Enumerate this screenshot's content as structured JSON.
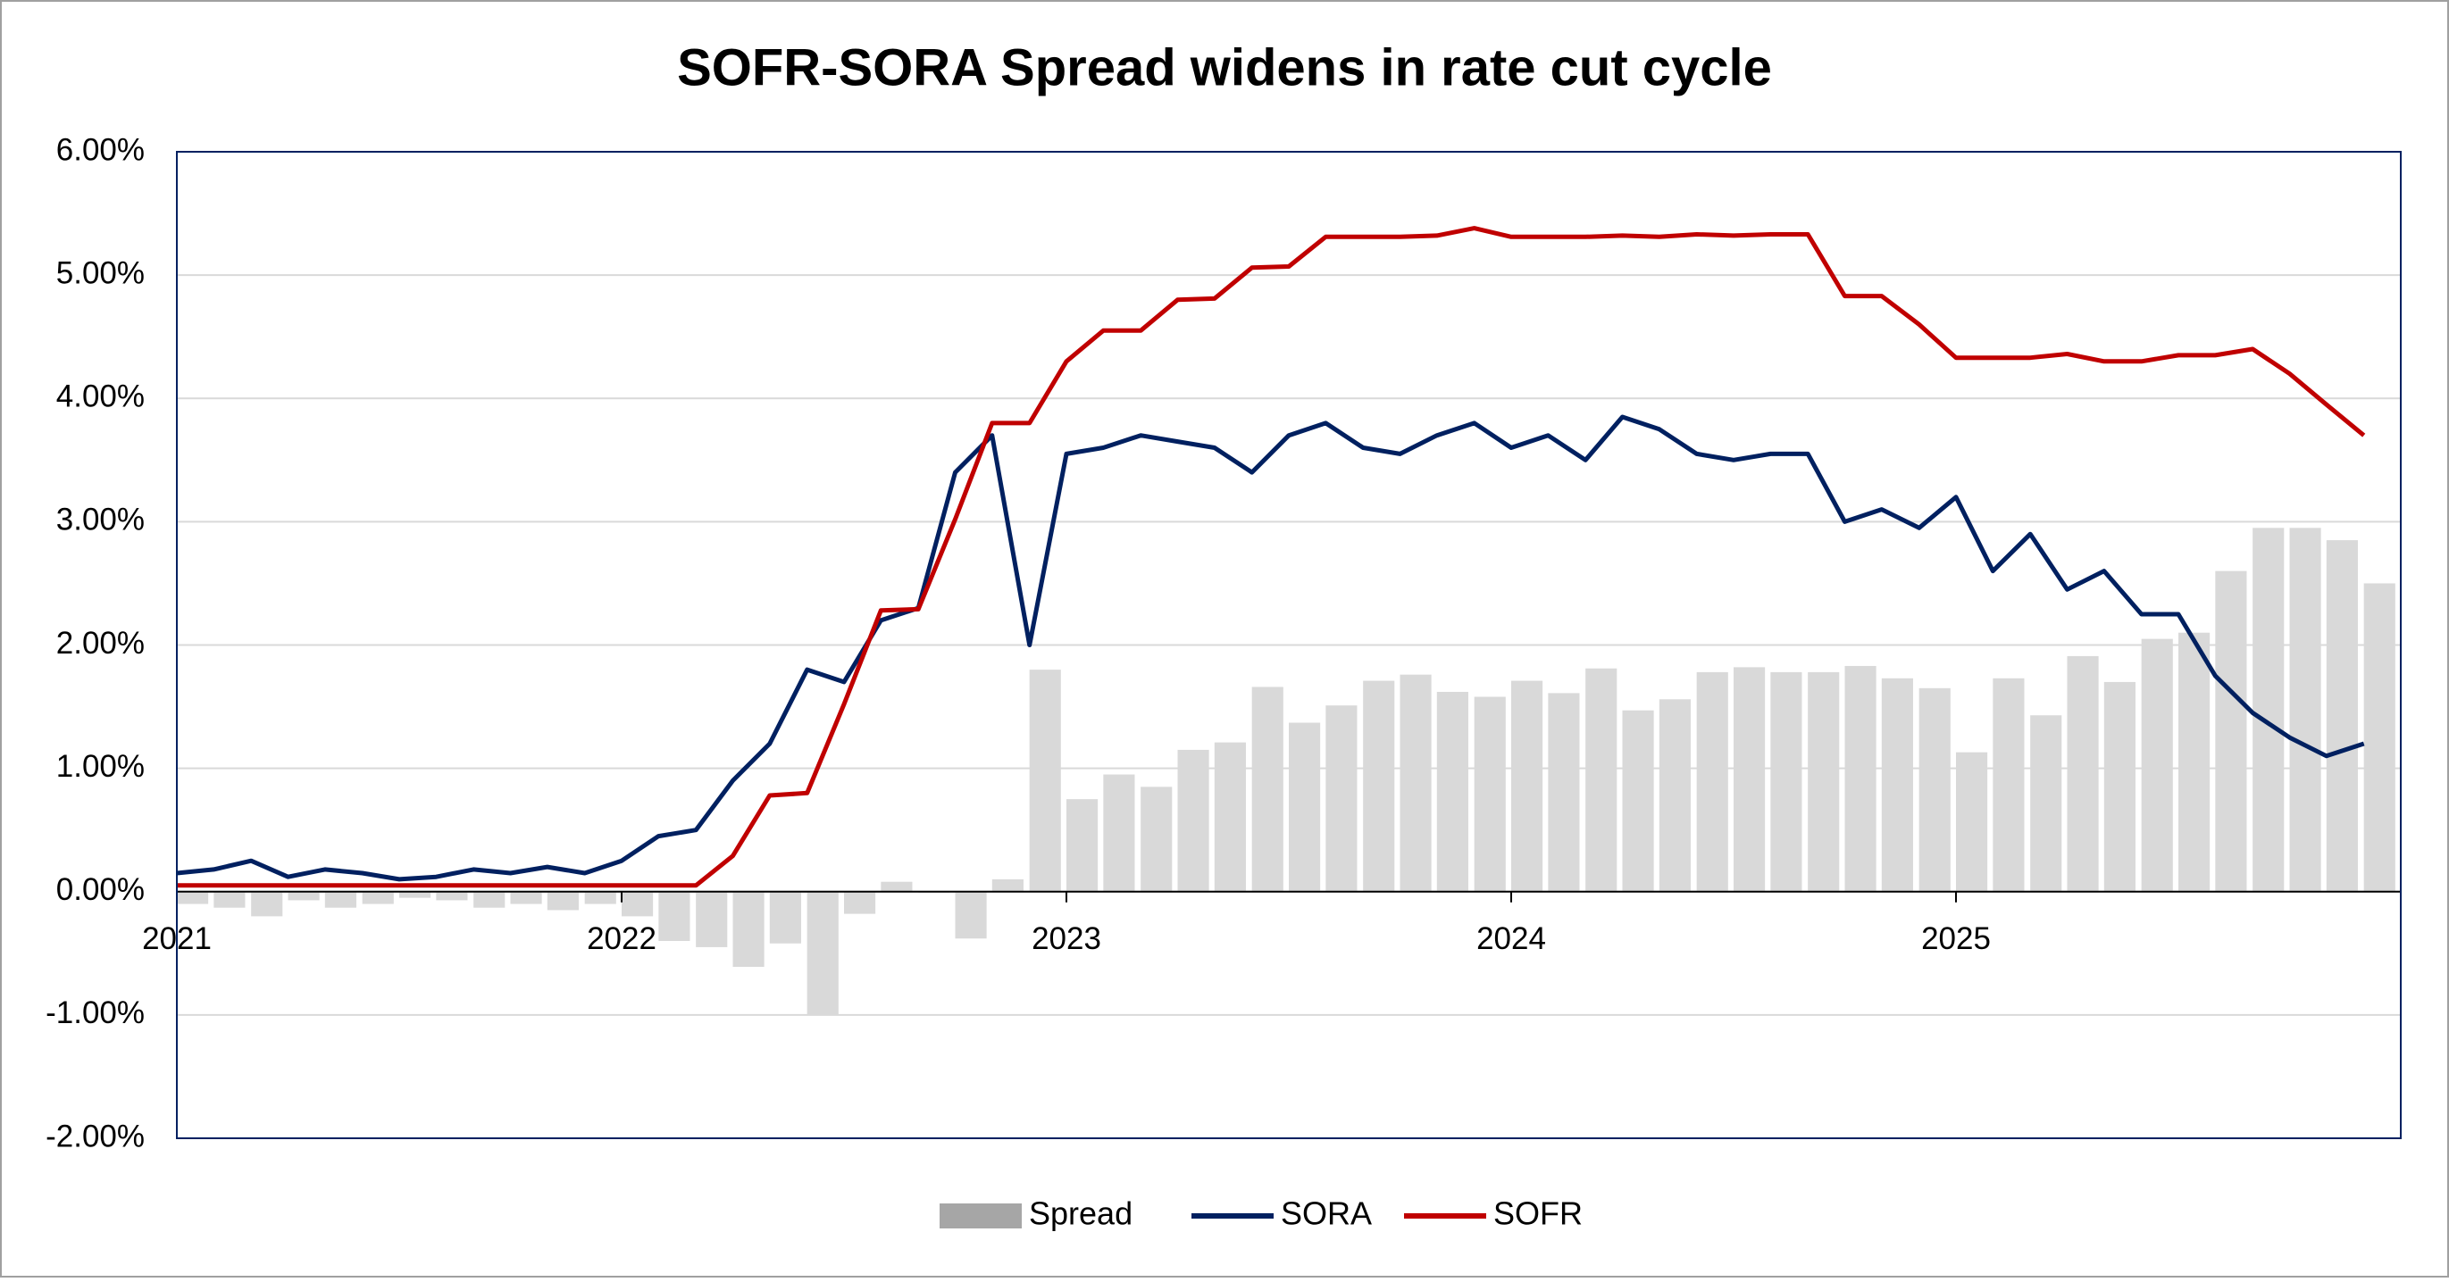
{
  "chart_data": {
    "type": "line",
    "title": "SOFR-SORA Spread widens in rate cut cycle",
    "x": [
      2021.0,
      2021.083,
      2021.167,
      2021.25,
      2021.333,
      2021.417,
      2021.5,
      2021.583,
      2021.667,
      2021.75,
      2021.833,
      2021.917,
      2022.0,
      2022.083,
      2022.167,
      2022.25,
      2022.333,
      2022.417,
      2022.5,
      2022.583,
      2022.667,
      2022.75,
      2022.833,
      2022.917,
      2023.0,
      2023.083,
      2023.167,
      2023.25,
      2023.333,
      2023.417,
      2023.5,
      2023.583,
      2023.667,
      2023.75,
      2023.833,
      2023.917,
      2024.0,
      2024.083,
      2024.167,
      2024.25,
      2024.333,
      2024.417,
      2024.5,
      2024.583,
      2024.667,
      2024.75,
      2024.833,
      2024.917,
      2025.0,
      2025.083,
      2025.167,
      2025.25,
      2025.333,
      2025.417,
      2025.5,
      2025.583,
      2025.667,
      2025.75,
      2025.833,
      2025.917
    ],
    "series": [
      {
        "name": "Spread",
        "type": "bar",
        "color": "#d9d9d9",
        "values": [
          -0.1,
          -0.13,
          -0.2,
          -0.07,
          -0.13,
          -0.1,
          -0.05,
          -0.07,
          -0.13,
          -0.1,
          -0.15,
          -0.1,
          -0.2,
          -0.4,
          -0.45,
          -0.61,
          -0.42,
          -1.0,
          -0.18,
          0.08,
          -0.01,
          -0.38,
          0.1,
          1.8,
          0.75,
          0.95,
          0.85,
          1.15,
          1.21,
          1.66,
          1.37,
          1.51,
          1.71,
          1.76,
          1.62,
          1.58,
          1.71,
          1.61,
          1.81,
          1.47,
          1.56,
          1.78,
          1.82,
          1.78,
          1.78,
          1.83,
          1.73,
          1.65,
          1.13,
          1.73,
          1.43,
          1.91,
          1.7,
          2.05,
          2.1,
          2.6,
          2.95,
          2.95,
          2.85,
          2.5
        ]
      },
      {
        "name": "SORA",
        "type": "line",
        "color": "#002060",
        "values": [
          0.15,
          0.18,
          0.25,
          0.12,
          0.18,
          0.15,
          0.1,
          0.12,
          0.18,
          0.15,
          0.2,
          0.15,
          0.25,
          0.45,
          0.5,
          0.9,
          1.2,
          1.8,
          1.7,
          2.2,
          2.3,
          3.4,
          3.7,
          2.0,
          3.55,
          3.6,
          3.7,
          3.65,
          3.6,
          3.4,
          3.7,
          3.8,
          3.6,
          3.55,
          3.7,
          3.8,
          3.6,
          3.7,
          3.5,
          3.85,
          3.75,
          3.55,
          3.5,
          3.55,
          3.55,
          3.0,
          3.1,
          2.95,
          3.2,
          2.6,
          2.9,
          2.45,
          2.6,
          2.25,
          2.25,
          1.75,
          1.45,
          1.25,
          1.1,
          1.2
        ]
      },
      {
        "name": "SOFR",
        "type": "line",
        "color": "#c00000",
        "values": [
          0.05,
          0.05,
          0.05,
          0.05,
          0.05,
          0.05,
          0.05,
          0.05,
          0.05,
          0.05,
          0.05,
          0.05,
          0.05,
          0.05,
          0.05,
          0.29,
          0.78,
          0.8,
          1.52,
          2.28,
          2.29,
          3.02,
          3.8,
          3.8,
          4.3,
          4.55,
          4.55,
          4.8,
          4.81,
          5.06,
          5.07,
          5.31,
          5.31,
          5.31,
          5.32,
          5.38,
          5.31,
          5.31,
          5.31,
          5.32,
          5.31,
          5.33,
          5.32,
          5.33,
          5.33,
          4.83,
          4.83,
          4.6,
          4.33,
          4.33,
          4.33,
          4.36,
          4.3,
          4.3,
          4.35,
          4.35,
          4.4,
          4.2,
          3.95,
          3.7
        ]
      }
    ],
    "xlim": [
      2021,
      2026
    ],
    "xticks": [
      2021,
      2022,
      2023,
      2024,
      2025
    ],
    "ylim": [
      -2,
      6
    ],
    "yticks": [
      {
        "value": -2,
        "label": "-2.00%"
      },
      {
        "value": -1,
        "label": "-1.00%"
      },
      {
        "value": 0,
        "label": "0.00%"
      },
      {
        "value": 1,
        "label": "1.00%"
      },
      {
        "value": 2,
        "label": "2.00%"
      },
      {
        "value": 3,
        "label": "3.00%"
      },
      {
        "value": 4,
        "label": "4.00%"
      },
      {
        "value": 5,
        "label": "5.00%"
      },
      {
        "value": 6,
        "label": "6.00%"
      }
    ],
    "grid": true,
    "legend": "bottom"
  }
}
